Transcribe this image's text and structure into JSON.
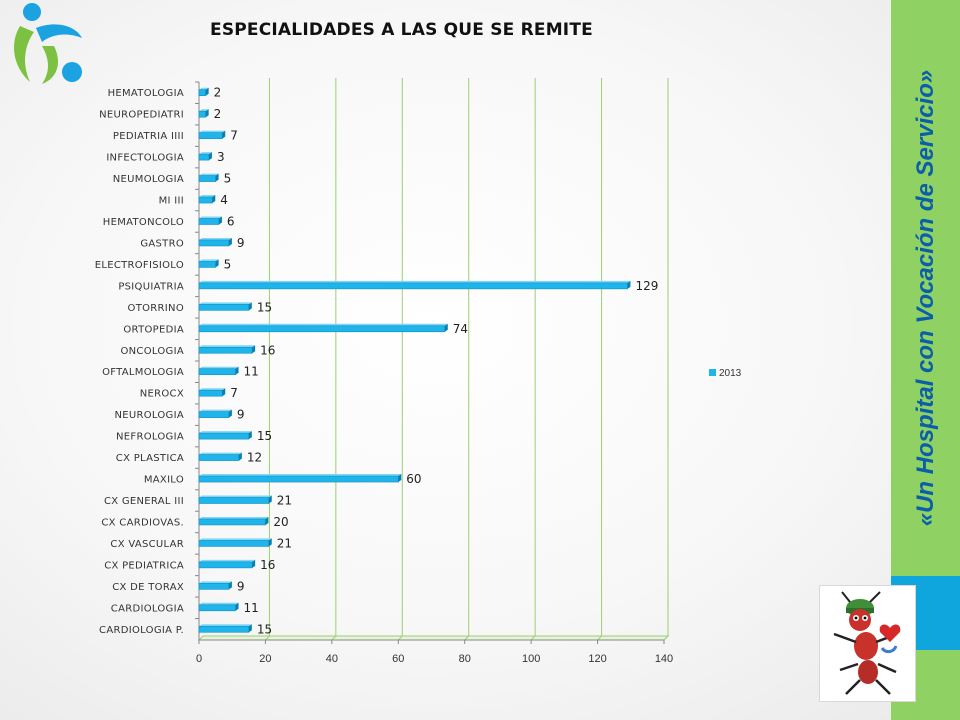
{
  "slide": {
    "title": "ESPECIALIDADES A LAS QUE SE REMITE",
    "slogan": "«Un Hospital con Vocación de Servicio»",
    "colors": {
      "accent_green": "#8fd163",
      "accent_blue": "#0fa6dd",
      "bar": "#1fb5ea",
      "slogan": "#0a5fa8"
    },
    "logo": "hospital-logo-icon",
    "mascot": "ant-doctor-mascot-icon"
  },
  "chart_data": {
    "type": "bar",
    "orientation": "horizontal",
    "title": "ESPECIALIDADES A LAS QUE SE REMITE",
    "xlim": [
      0,
      140
    ],
    "xticks": [
      "0",
      "20",
      "40",
      "60",
      "80",
      "100",
      "120",
      "140"
    ],
    "grid": true,
    "legend": "right",
    "categories": [
      "HEMATOLOGIA",
      "NEUROPEDIATRI",
      "PEDIATRIA IIII",
      "INFECTOLOGIA",
      "NEUMOLOGIA",
      "MI III",
      "HEMATONCOLO",
      "GASTRO",
      "ELECTROFISIOLO",
      "PSIQUIATRIA",
      "OTORRINO",
      "ORTOPEDIA",
      "ONCOLOGIA",
      "OFTALMOLOGIA",
      "NEROCX",
      "NEUROLOGIA",
      "NEFROLOGIA",
      "CX PLASTICA",
      "MAXILO",
      "CX GENERAL III",
      "CX CARDIOVAS.",
      "CX VASCULAR",
      "CX PEDIATRICA",
      "CX DE TORAX",
      "CARDIOLOGIA",
      "CARDIOLOGIA P."
    ],
    "series": [
      {
        "name": "2013",
        "values": [
          2,
          2,
          7,
          3,
          5,
          4,
          6,
          9,
          5,
          129,
          15,
          74,
          16,
          11,
          7,
          9,
          15,
          12,
          60,
          21,
          20,
          21,
          16,
          9,
          11,
          15
        ]
      }
    ]
  }
}
